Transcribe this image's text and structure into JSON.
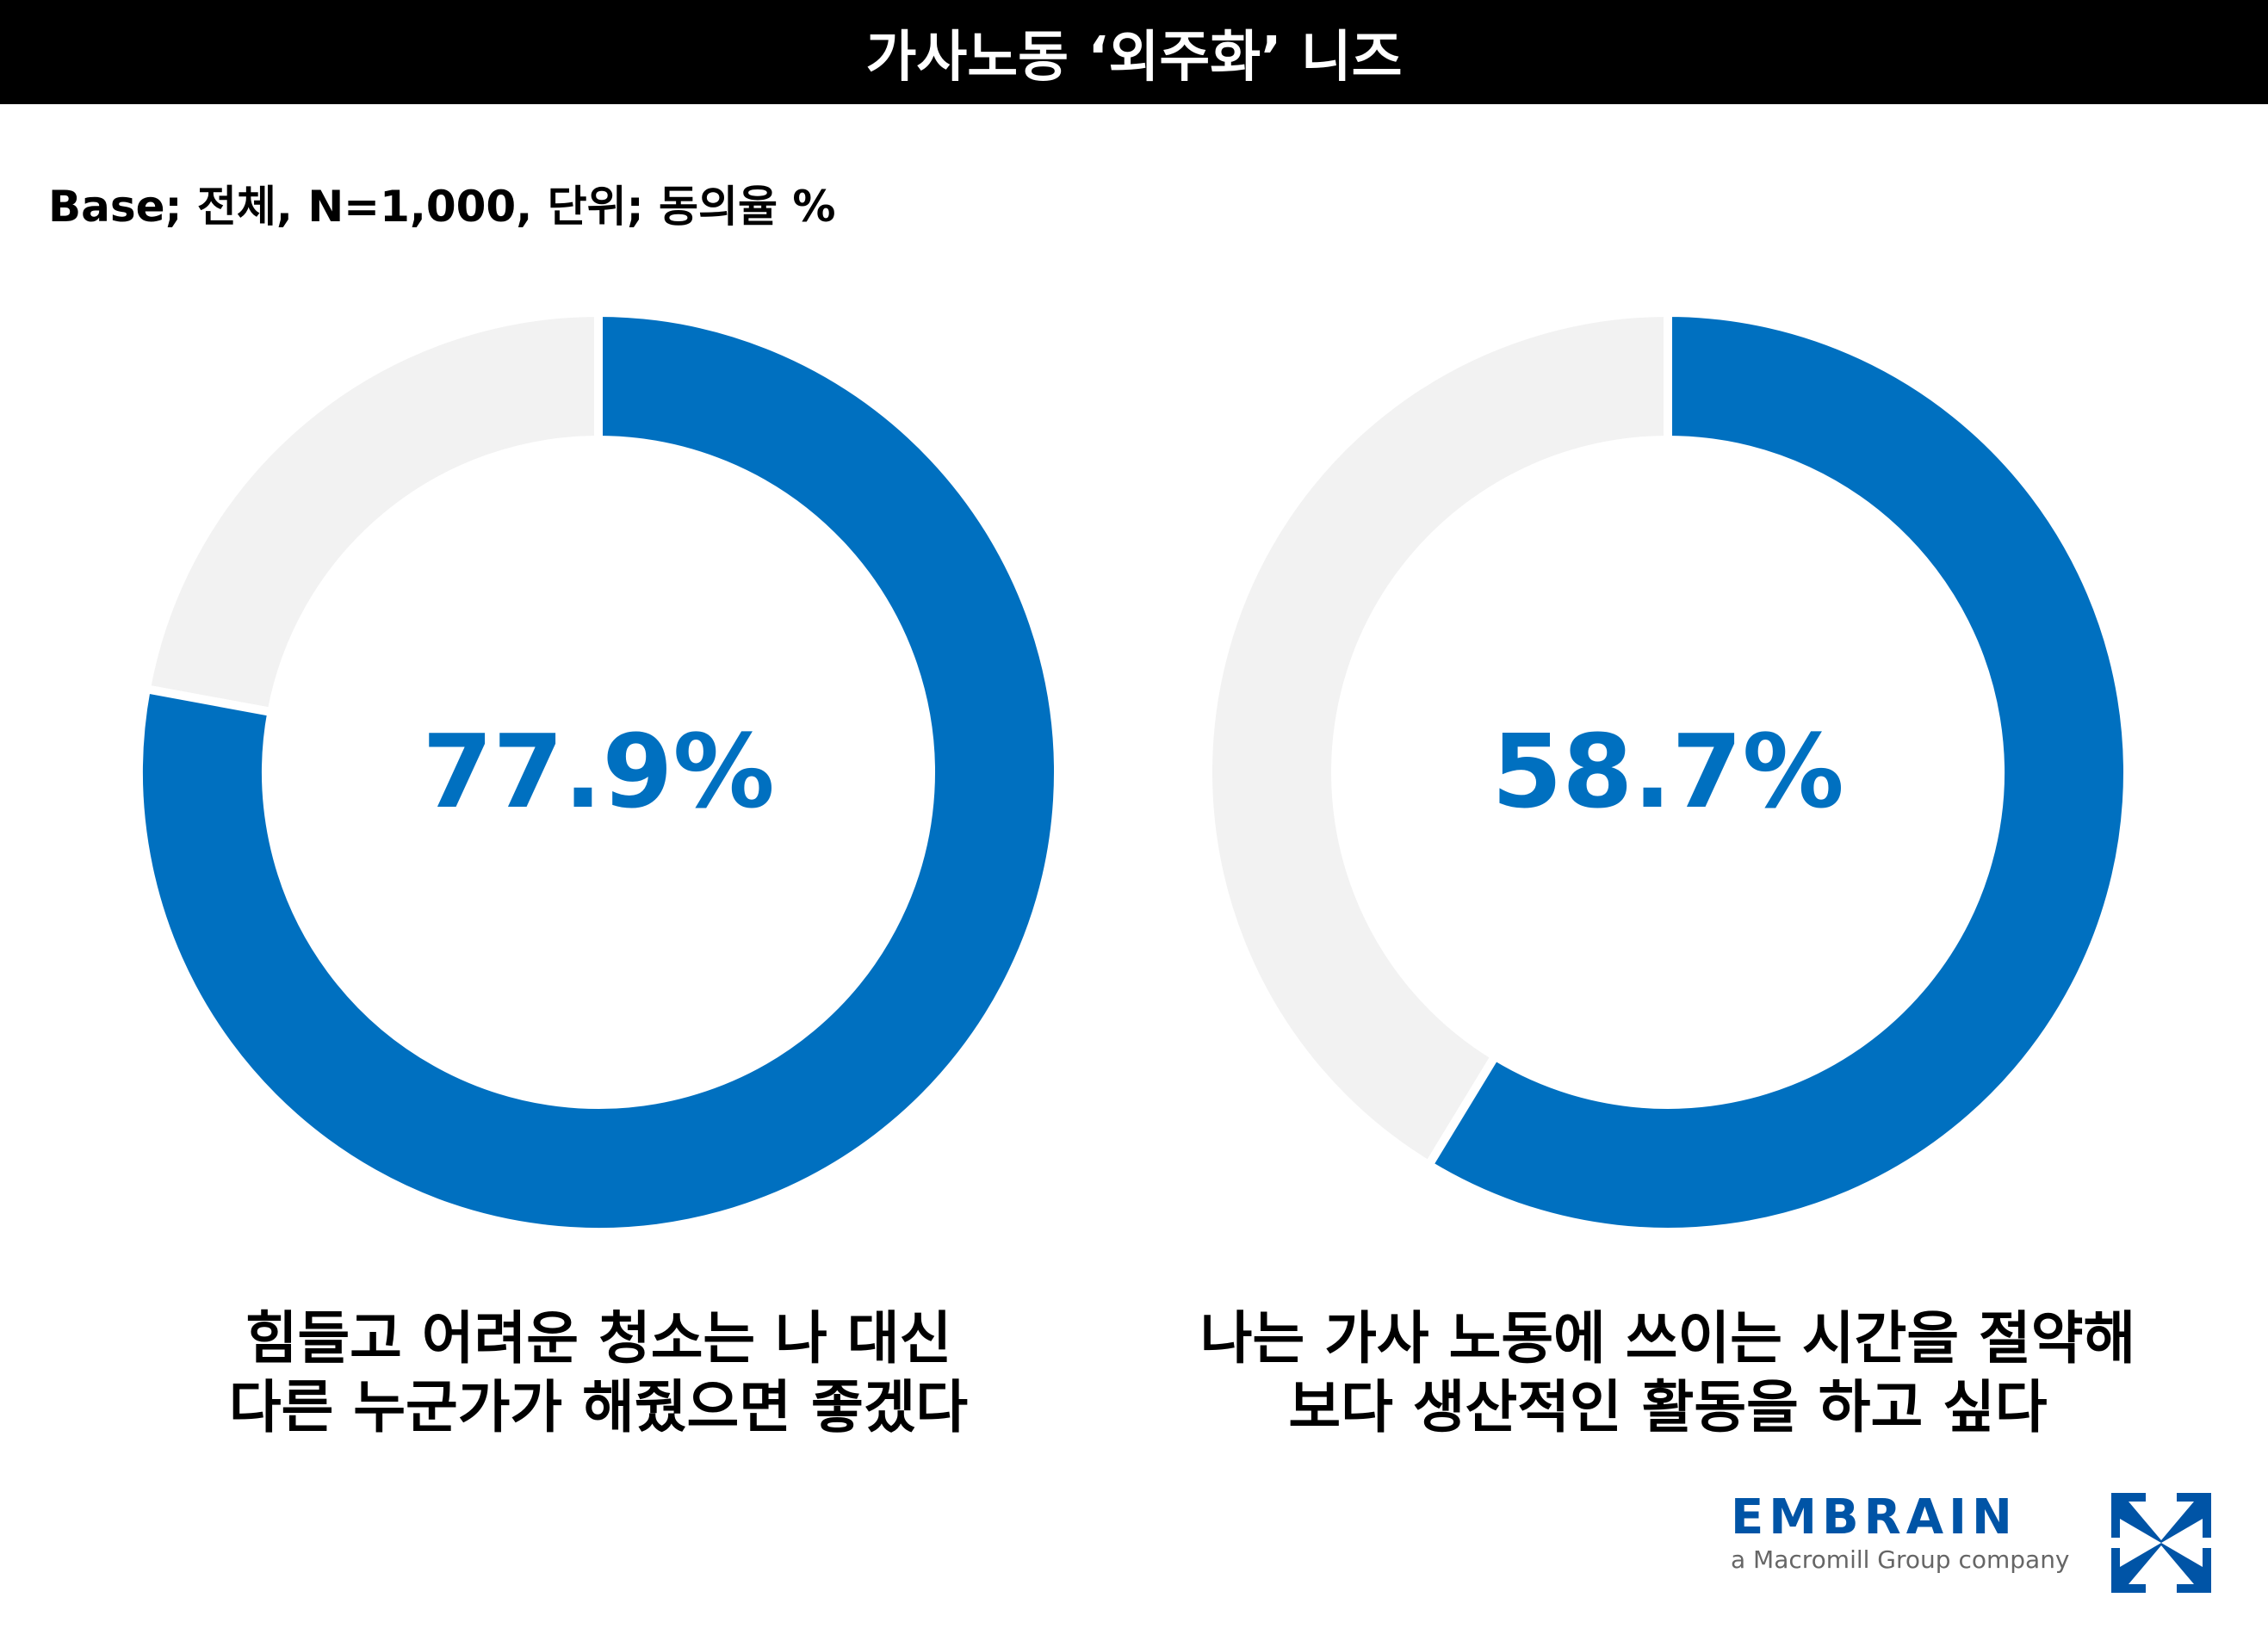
{
  "header": {
    "title": "가사노동 ‘외주화’ 니즈"
  },
  "base_note": "Base; 전체, N=1,000, 단위; 동의율 %",
  "colors": {
    "accent": "#0070C0",
    "remainder": "#F2F2F2",
    "brand": "#0054A6"
  },
  "chart_data": [
    {
      "type": "pie",
      "subtype": "donut",
      "value": 77.9,
      "remainder": 22.1,
      "center_label": "77.9%",
      "caption": [
        "힘들고 어려운 청소는 나 대신",
        "다른 누군가가 해줬으면 좋겠다"
      ]
    },
    {
      "type": "pie",
      "subtype": "donut",
      "value": 58.7,
      "remainder": 41.3,
      "center_label": "58.7%",
      "caption": [
        "나는 가사 노동에 쓰이는 시간을 절약해",
        "보다 생산적인 활동을 하고 싶다"
      ]
    }
  ],
  "logo": {
    "name": "EMBRAIN",
    "tagline": "a Macromill Group company"
  }
}
